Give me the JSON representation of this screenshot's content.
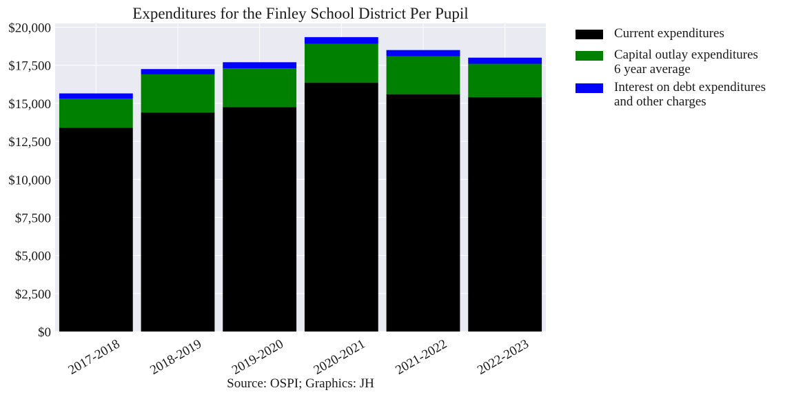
{
  "chart_data": {
    "type": "bar",
    "stacked": true,
    "title": "Expenditures for the Finley School District Per Pupil",
    "caption": "Source: OSPI; Graphics: JH",
    "categories": [
      "2017-2018",
      "2018-2019",
      "2019-2020",
      "2020-2021",
      "2021-2022",
      "2022-2023"
    ],
    "series": [
      {
        "name": "Current expenditures",
        "color": "#000000",
        "values": [
          13400,
          14400,
          14750,
          16350,
          15600,
          15400
        ]
      },
      {
        "name": "Capital outlay expenditures\n6 year average",
        "color": "#008000",
        "values": [
          1900,
          2500,
          2550,
          2550,
          2500,
          2200
        ]
      },
      {
        "name": "Interest on debt expenditures\nand other charges",
        "color": "#0000ff",
        "values": [
          350,
          350,
          400,
          450,
          400,
          400
        ]
      }
    ],
    "y_ticks": [
      "$0",
      "$2,500",
      "$5,000",
      "$7,500",
      "$10,000",
      "$12,500",
      "$15,000",
      "$17,500",
      "$20,000"
    ],
    "ylim": [
      0,
      20250
    ],
    "grid": true,
    "legend_position": "outside-right",
    "background": "#eaeaf2"
  }
}
